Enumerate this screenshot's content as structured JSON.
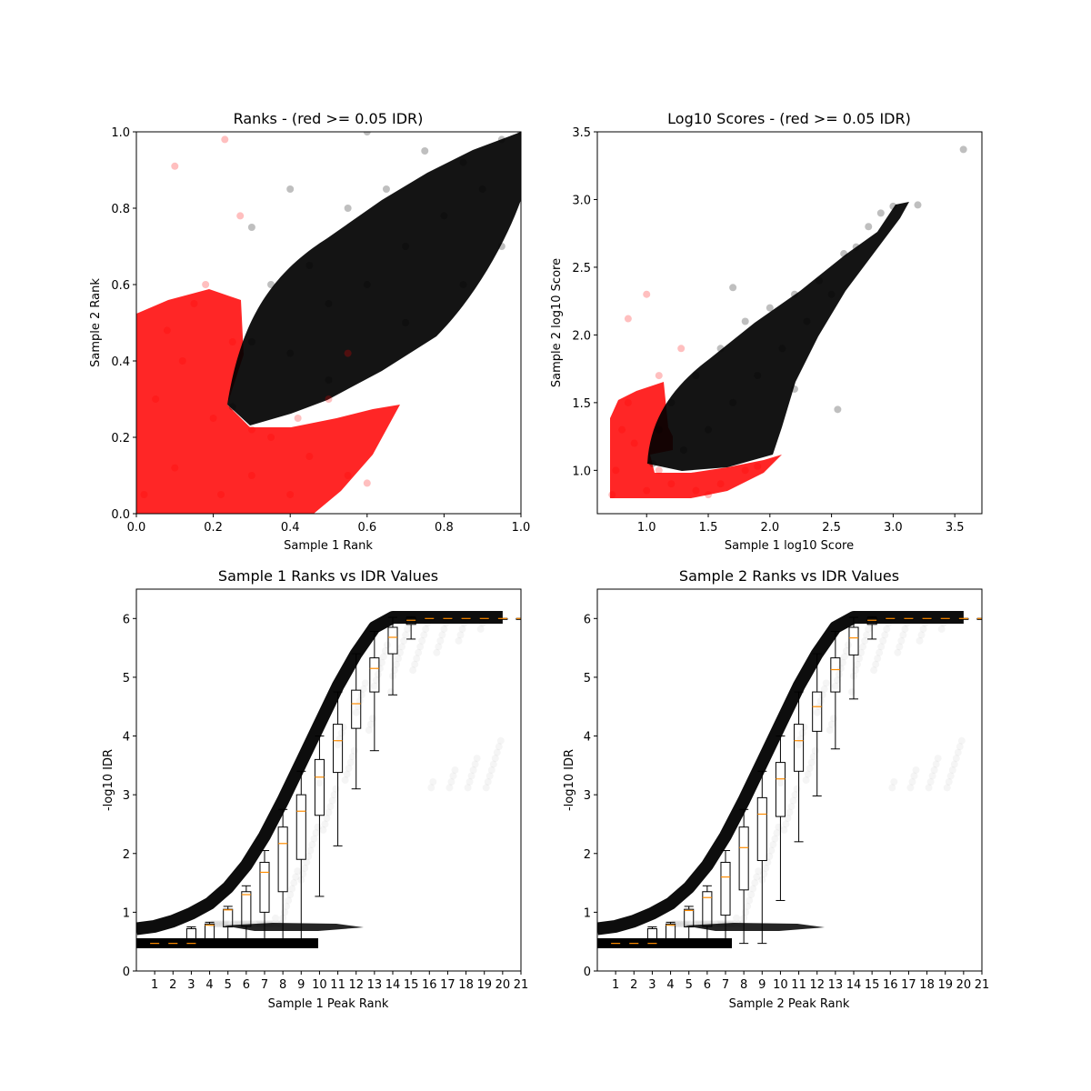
{
  "chart_data": [
    {
      "type": "scatter",
      "title": "Ranks - (red >= 0.05 IDR)",
      "xlabel": "Sample 1 Rank",
      "ylabel": "Sample 2 Rank",
      "xlim": [
        0,
        1
      ],
      "ylim": [
        0,
        1
      ],
      "xticks": [
        "0.0",
        "0.2",
        "0.4",
        "0.6",
        "0.8",
        "1.0"
      ],
      "yticks": [
        "0.0",
        "0.2",
        "0.4",
        "0.6",
        "0.8",
        "1.0"
      ],
      "series": [
        {
          "color": "#ff0000",
          "points": [
            [
              0.02,
              0.05
            ],
            [
              0.05,
              0.3
            ],
            [
              0.08,
              0.48
            ],
            [
              0.1,
              0.12
            ],
            [
              0.12,
              0.4
            ],
            [
              0.15,
              0.55
            ],
            [
              0.2,
              0.25
            ],
            [
              0.22,
              0.05
            ],
            [
              0.25,
              0.45
            ],
            [
              0.3,
              0.1
            ],
            [
              0.35,
              0.2
            ],
            [
              0.4,
              0.05
            ],
            [
              0.45,
              0.15
            ],
            [
              0.5,
              0.3
            ],
            [
              0.55,
              0.1
            ],
            [
              0.6,
              0.08
            ],
            [
              0.3,
              0.22
            ],
            [
              0.42,
              0.25
            ],
            [
              0.18,
              0.6
            ],
            [
              0.1,
              0.91
            ],
            [
              0.23,
              0.98
            ],
            [
              0.27,
              0.78
            ],
            [
              0.55,
              0.42
            ]
          ]
        },
        {
          "color": "#000000",
          "points": [
            [
              0.25,
              0.28
            ],
            [
              0.3,
              0.45
            ],
            [
              0.35,
              0.6
            ],
            [
              0.4,
              0.42
            ],
            [
              0.45,
              0.65
            ],
            [
              0.5,
              0.55
            ],
            [
              0.55,
              0.8
            ],
            [
              0.6,
              0.6
            ],
            [
              0.65,
              0.85
            ],
            [
              0.7,
              0.7
            ],
            [
              0.75,
              0.95
            ],
            [
              0.8,
              0.78
            ],
            [
              0.85,
              0.92
            ],
            [
              0.9,
              0.85
            ],
            [
              0.95,
              0.98
            ],
            [
              1.0,
              1.0
            ],
            [
              0.7,
              0.5
            ],
            [
              0.85,
              0.6
            ],
            [
              0.95,
              0.7
            ],
            [
              0.5,
              0.35
            ],
            [
              0.3,
              0.75
            ],
            [
              0.4,
              0.85
            ],
            [
              0.6,
              1.0
            ]
          ]
        }
      ]
    },
    {
      "type": "scatter",
      "title": "Log10 Scores - (red >= 0.05 IDR)",
      "xlabel": "Sample 1 log10 Score",
      "ylabel": "Sample 2 log10 Score",
      "xlim": [
        0.6,
        3.72
      ],
      "ylim": [
        0.68,
        3.5
      ],
      "xticks": [
        "1.0",
        "1.5",
        "2.0",
        "2.5",
        "3.0",
        "3.5"
      ],
      "yticks": [
        "1.0",
        "1.5",
        "2.0",
        "2.5",
        "3.0",
        "3.5"
      ],
      "series": [
        {
          "color": "#ff0000",
          "points": [
            [
              0.72,
              0.82
            ],
            [
              0.75,
              1.0
            ],
            [
              0.8,
              1.3
            ],
            [
              0.85,
              1.5
            ],
            [
              0.9,
              1.2
            ],
            [
              1.0,
              0.85
            ],
            [
              1.1,
              1.0
            ],
            [
              1.2,
              0.9
            ],
            [
              1.4,
              0.85
            ],
            [
              1.6,
              0.9
            ],
            [
              1.8,
              1.0
            ],
            [
              1.9,
              1.03
            ],
            [
              0.85,
              2.12
            ],
            [
              1.0,
              2.3
            ],
            [
              1.28,
              1.9
            ],
            [
              1.1,
              1.7
            ],
            [
              1.5,
              0.82
            ]
          ]
        },
        {
          "color": "#000000",
          "points": [
            [
              1.05,
              1.05
            ],
            [
              1.1,
              1.3
            ],
            [
              1.2,
              1.5
            ],
            [
              1.3,
              1.15
            ],
            [
              1.4,
              1.7
            ],
            [
              1.5,
              1.3
            ],
            [
              1.6,
              1.9
            ],
            [
              1.7,
              1.5
            ],
            [
              1.8,
              2.1
            ],
            [
              1.9,
              1.7
            ],
            [
              2.0,
              2.2
            ],
            [
              2.1,
              1.9
            ],
            [
              2.2,
              2.3
            ],
            [
              2.3,
              2.1
            ],
            [
              2.4,
              2.4
            ],
            [
              2.5,
              2.3
            ],
            [
              2.6,
              2.6
            ],
            [
              2.7,
              2.65
            ],
            [
              2.8,
              2.8
            ],
            [
              2.9,
              2.9
            ],
            [
              3.0,
              2.95
            ],
            [
              3.2,
              2.96
            ],
            [
              3.57,
              3.37
            ],
            [
              2.55,
              1.45
            ],
            [
              2.2,
              1.6
            ],
            [
              1.7,
              2.35
            ]
          ]
        }
      ]
    },
    {
      "type": "scatter",
      "title": "Sample 1 Ranks vs IDR Values",
      "xlabel": "Sample 1 Peak Rank",
      "ylabel": "-log10 IDR",
      "xlim": [
        0,
        21
      ],
      "ylim": [
        0,
        6.5
      ],
      "xticks": [
        "1",
        "2",
        "3",
        "4",
        "5",
        "6",
        "7",
        "8",
        "9",
        "10",
        "11",
        "12",
        "13",
        "14",
        "15",
        "16",
        "17",
        "18",
        "19",
        "20",
        "21"
      ],
      "yticks": [
        "0",
        "1",
        "2",
        "3",
        "4",
        "5",
        "6"
      ],
      "curve": [
        [
          0,
          0.72
        ],
        [
          1,
          0.76
        ],
        [
          2,
          0.85
        ],
        [
          3,
          0.98
        ],
        [
          4,
          1.15
        ],
        [
          5,
          1.42
        ],
        [
          6,
          1.8
        ],
        [
          7,
          2.3
        ],
        [
          8,
          2.9
        ],
        [
          9,
          3.55
        ],
        [
          10,
          4.2
        ],
        [
          11,
          4.85
        ],
        [
          12,
          5.4
        ],
        [
          13,
          5.85
        ],
        [
          14,
          6.02
        ],
        [
          15,
          6.02
        ],
        [
          16,
          6.02
        ],
        [
          17,
          6.02
        ],
        [
          18,
          6.02
        ],
        [
          19,
          6.02
        ],
        [
          20,
          6.02
        ]
      ],
      "boxes": [
        {
          "x": 1,
          "med": 0.47,
          "q1": 0.45,
          "q3": 0.5,
          "lo": 0.45,
          "hi": 0.5
        },
        {
          "x": 2,
          "med": 0.47,
          "q1": 0.45,
          "q3": 0.5,
          "lo": 0.45,
          "hi": 0.5
        },
        {
          "x": 3,
          "med": 0.47,
          "q1": 0.45,
          "q3": 0.72,
          "lo": 0.45,
          "hi": 0.75
        },
        {
          "x": 4,
          "med": 0.78,
          "q1": 0.5,
          "q3": 0.8,
          "lo": 0.47,
          "hi": 0.83
        },
        {
          "x": 5,
          "med": 1.04,
          "q1": 0.75,
          "q3": 1.05,
          "lo": 0.47,
          "hi": 1.1
        },
        {
          "x": 6,
          "med": 1.3,
          "q1": 0.76,
          "q3": 1.35,
          "lo": 0.5,
          "hi": 1.45
        },
        {
          "x": 7,
          "med": 1.68,
          "q1": 1.0,
          "q3": 1.85,
          "lo": 0.5,
          "hi": 2.05
        },
        {
          "x": 8,
          "med": 2.17,
          "q1": 1.35,
          "q3": 2.45,
          "lo": 0.47,
          "hi": 2.75
        },
        {
          "x": 9,
          "med": 2.72,
          "q1": 1.9,
          "q3": 3.0,
          "lo": 0.47,
          "hi": 3.4
        },
        {
          "x": 10,
          "med": 3.3,
          "q1": 2.65,
          "q3": 3.6,
          "lo": 1.27,
          "hi": 4.0
        },
        {
          "x": 11,
          "med": 3.92,
          "q1": 3.38,
          "q3": 4.2,
          "lo": 2.13,
          "hi": 4.75
        },
        {
          "x": 12,
          "med": 4.55,
          "q1": 4.13,
          "q3": 4.78,
          "lo": 3.1,
          "hi": 5.4
        },
        {
          "x": 13,
          "med": 5.15,
          "q1": 4.75,
          "q3": 5.33,
          "lo": 3.75,
          "hi": 5.78
        },
        {
          "x": 14,
          "med": 5.68,
          "q1": 5.4,
          "q3": 5.85,
          "lo": 4.7,
          "hi": 6.02
        },
        {
          "x": 15,
          "med": 5.97,
          "q1": 5.9,
          "q3": 6.01,
          "lo": 5.65,
          "hi": 6.03
        },
        {
          "x": 16,
          "med": 6.0,
          "q1": 6.0,
          "q3": 6.0,
          "lo": 6.0,
          "hi": 6.0
        },
        {
          "x": 17,
          "med": 6.0,
          "q1": 6.0,
          "q3": 6.0,
          "lo": 6.0,
          "hi": 6.0
        },
        {
          "x": 18,
          "med": 6.0,
          "q1": 6.0,
          "q3": 6.0,
          "lo": 6.0,
          "hi": 6.0
        },
        {
          "x": 19,
          "med": 6.0,
          "q1": 6.0,
          "q3": 6.0,
          "lo": 6.0,
          "hi": 6.0
        },
        {
          "x": 20,
          "med": 6.0,
          "q1": 6.0,
          "q3": 6.0,
          "lo": 6.0,
          "hi": 6.0
        },
        {
          "x": 21,
          "med": 6.0,
          "q1": 6.0,
          "q3": 6.0,
          "lo": 6.0,
          "hi": 6.0
        }
      ]
    },
    {
      "type": "scatter",
      "title": "Sample 2 Ranks vs IDR Values",
      "xlabel": "Sample 2 Peak Rank",
      "ylabel": "-log10 IDR",
      "xlim": [
        0,
        21
      ],
      "ylim": [
        0,
        6.5
      ],
      "xticks": [
        "1",
        "2",
        "3",
        "4",
        "5",
        "6",
        "7",
        "8",
        "9",
        "10",
        "11",
        "12",
        "13",
        "14",
        "15",
        "16",
        "17",
        "18",
        "19",
        "20",
        "21"
      ],
      "yticks": [
        "0",
        "1",
        "2",
        "3",
        "4",
        "5",
        "6"
      ],
      "curve": [
        [
          0,
          0.72
        ],
        [
          1,
          0.76
        ],
        [
          2,
          0.85
        ],
        [
          3,
          0.98
        ],
        [
          4,
          1.15
        ],
        [
          5,
          1.42
        ],
        [
          6,
          1.8
        ],
        [
          7,
          2.3
        ],
        [
          8,
          2.9
        ],
        [
          9,
          3.55
        ],
        [
          10,
          4.2
        ],
        [
          11,
          4.85
        ],
        [
          12,
          5.4
        ],
        [
          13,
          5.85
        ],
        [
          14,
          6.02
        ],
        [
          15,
          6.02
        ],
        [
          16,
          6.02
        ],
        [
          17,
          6.02
        ],
        [
          18,
          6.02
        ],
        [
          19,
          6.02
        ],
        [
          20,
          6.02
        ]
      ],
      "boxes": [
        {
          "x": 1,
          "med": 0.47,
          "q1": 0.45,
          "q3": 0.5,
          "lo": 0.45,
          "hi": 0.5
        },
        {
          "x": 2,
          "med": 0.47,
          "q1": 0.45,
          "q3": 0.5,
          "lo": 0.45,
          "hi": 0.5
        },
        {
          "x": 3,
          "med": 0.47,
          "q1": 0.45,
          "q3": 0.72,
          "lo": 0.45,
          "hi": 0.75
        },
        {
          "x": 4,
          "med": 0.78,
          "q1": 0.5,
          "q3": 0.8,
          "lo": 0.47,
          "hi": 0.83
        },
        {
          "x": 5,
          "med": 1.03,
          "q1": 0.75,
          "q3": 1.05,
          "lo": 0.47,
          "hi": 1.1
        },
        {
          "x": 6,
          "med": 1.25,
          "q1": 0.76,
          "q3": 1.35,
          "lo": 0.5,
          "hi": 1.45
        },
        {
          "x": 7,
          "med": 1.6,
          "q1": 0.95,
          "q3": 1.85,
          "lo": 0.5,
          "hi": 2.05
        },
        {
          "x": 8,
          "med": 2.1,
          "q1": 1.38,
          "q3": 2.45,
          "lo": 0.47,
          "hi": 2.75
        },
        {
          "x": 9,
          "med": 2.67,
          "q1": 1.88,
          "q3": 2.95,
          "lo": 0.47,
          "hi": 3.4
        },
        {
          "x": 10,
          "med": 3.27,
          "q1": 2.63,
          "q3": 3.55,
          "lo": 1.2,
          "hi": 4.0
        },
        {
          "x": 11,
          "med": 3.92,
          "q1": 3.4,
          "q3": 4.2,
          "lo": 2.2,
          "hi": 4.75
        },
        {
          "x": 12,
          "med": 4.5,
          "q1": 4.08,
          "q3": 4.75,
          "lo": 2.98,
          "hi": 5.4
        },
        {
          "x": 13,
          "med": 5.13,
          "q1": 4.75,
          "q3": 5.33,
          "lo": 3.78,
          "hi": 5.78
        },
        {
          "x": 14,
          "med": 5.67,
          "q1": 5.38,
          "q3": 5.85,
          "lo": 4.63,
          "hi": 6.02
        },
        {
          "x": 15,
          "med": 5.97,
          "q1": 5.9,
          "q3": 6.01,
          "lo": 5.65,
          "hi": 6.03
        },
        {
          "x": 16,
          "med": 6.0,
          "q1": 6.0,
          "q3": 6.0,
          "lo": 6.0,
          "hi": 6.0
        },
        {
          "x": 17,
          "med": 6.0,
          "q1": 6.0,
          "q3": 6.0,
          "lo": 6.0,
          "hi": 6.0
        },
        {
          "x": 18,
          "med": 6.0,
          "q1": 6.0,
          "q3": 6.0,
          "lo": 6.0,
          "hi": 6.0
        },
        {
          "x": 19,
          "med": 6.0,
          "q1": 6.0,
          "q3": 6.0,
          "lo": 6.0,
          "hi": 6.0
        },
        {
          "x": 20,
          "med": 6.0,
          "q1": 6.0,
          "q3": 6.0,
          "lo": 6.0,
          "hi": 6.0
        },
        {
          "x": 21,
          "med": 6.0,
          "q1": 6.0,
          "q3": 6.0,
          "lo": 6.0,
          "hi": 6.0
        }
      ]
    }
  ]
}
